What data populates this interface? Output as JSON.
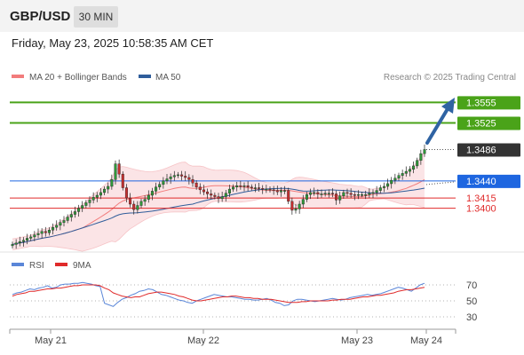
{
  "header": {
    "symbol": "GBP/USD",
    "timeframe": "30 MIN",
    "datetime": "Friday, May 23, 2025 10:58:35 AM CET"
  },
  "legend": {
    "ma20": "MA 20 + Bollinger Bands",
    "ma50": "MA 50",
    "copyright": "Research © 2025 Trading Central"
  },
  "rsi_legend": {
    "rsi": "RSI",
    "ma": "9MA"
  },
  "colors": {
    "green": "#4aa319",
    "blue": "#1e66e0",
    "red": "#e02a2a",
    "dark": "#333333",
    "ma20": "#f27c7c",
    "ma50": "#2f5d9b",
    "band": "#fbe4e6",
    "rsi": "#5a86d8",
    "rsi_ma": "#e02a2a",
    "arrow": "#2f63a3"
  },
  "chart_data": [
    {
      "type": "candlestick",
      "title": "",
      "ylim": [
        1.3341,
        1.3575
      ],
      "x_labels": [
        "May 21",
        "May 22",
        "May 23",
        "May 24"
      ],
      "levels": [
        {
          "value": 1.3555,
          "label": "1.3555",
          "kind": "resistance",
          "color": "green"
        },
        {
          "value": 1.3525,
          "label": "1.3525",
          "kind": "resistance",
          "color": "green"
        },
        {
          "value": 1.3486,
          "label": "1.3486",
          "kind": "last price",
          "color": "dark"
        },
        {
          "value": 1.344,
          "label": "1.3440",
          "kind": "pivot",
          "color": "blue"
        },
        {
          "value": 1.3415,
          "label": "1.3415",
          "kind": "support",
          "color": "red"
        },
        {
          "value": 1.34,
          "label": "1.3400",
          "kind": "support",
          "color": "red"
        }
      ],
      "closes": [
        1.3347,
        1.3349,
        1.3351,
        1.3353,
        1.3356,
        1.3358,
        1.3361,
        1.3363,
        1.3366,
        1.3364,
        1.3368,
        1.3372,
        1.3375,
        1.3379,
        1.3382,
        1.3387,
        1.3391,
        1.3395,
        1.34,
        1.3404,
        1.3408,
        1.3412,
        1.3416,
        1.3419,
        1.3423,
        1.3428,
        1.3432,
        1.3442,
        1.3465,
        1.345,
        1.343,
        1.3415,
        1.3406,
        1.3398,
        1.3404,
        1.341,
        1.3413,
        1.3419,
        1.3425,
        1.3431,
        1.3435,
        1.344,
        1.3443,
        1.3446,
        1.3448,
        1.3449,
        1.3447,
        1.3445,
        1.3442,
        1.3437,
        1.3431,
        1.3427,
        1.3424,
        1.3421,
        1.3419,
        1.3417,
        1.3414,
        1.3417,
        1.3422,
        1.3428,
        1.3431,
        1.3433,
        1.3432,
        1.3433,
        1.3431,
        1.343,
        1.343,
        1.3429,
        1.3428,
        1.3428,
        1.3427,
        1.3426,
        1.3424,
        1.3426,
        1.3426,
        1.341,
        1.3397,
        1.3399,
        1.3406,
        1.3413,
        1.342,
        1.3423,
        1.3423,
        1.3421,
        1.3421,
        1.3422,
        1.3422,
        1.3421,
        1.3412,
        1.3418,
        1.3423,
        1.3422,
        1.342,
        1.3419,
        1.342,
        1.342,
        1.342,
        1.3422,
        1.3423,
        1.3426,
        1.343,
        1.3432,
        1.3436,
        1.3441,
        1.3444,
        1.3448,
        1.3451,
        1.3454,
        1.3457,
        1.3462,
        1.347,
        1.348,
        1.3486
      ],
      "ma20_label": "MA 20 + Bollinger Bands",
      "ma50_label": "MA 50"
    },
    {
      "type": "line",
      "title": "",
      "ylim": [
        20,
        80
      ],
      "yticks": [
        70,
        50,
        30
      ],
      "series": [
        {
          "name": "RSI",
          "color": "rsi",
          "values": [
            58,
            60,
            61,
            63,
            65,
            64,
            66,
            67,
            69,
            66,
            67,
            70,
            71,
            71,
            72,
            72,
            73,
            72,
            71,
            69,
            68,
            47,
            45,
            43,
            48,
            52,
            54,
            57,
            59,
            62,
            63,
            65,
            64,
            61,
            58,
            57,
            55,
            53,
            51,
            50,
            48,
            47,
            50,
            52,
            54,
            56,
            58,
            57,
            56,
            55,
            55,
            54,
            53,
            52,
            52,
            51,
            51,
            52,
            53,
            51,
            48,
            47,
            44,
            45,
            50,
            52,
            52,
            51,
            50,
            49,
            50,
            51,
            52,
            53,
            52,
            51,
            52,
            54,
            55,
            56,
            57,
            58,
            57,
            58,
            59,
            61,
            63,
            65,
            67,
            66,
            64,
            62,
            66,
            70,
            72
          ]
        },
        {
          "name": "9MA",
          "color": "rsi_ma",
          "values": [
            56,
            58,
            59,
            60,
            62,
            62,
            63,
            64,
            65,
            65,
            66,
            66,
            67,
            68,
            69,
            69,
            70,
            70,
            70,
            70,
            69,
            66,
            64,
            60,
            58,
            56,
            55,
            54,
            55,
            55,
            57,
            59,
            60,
            61,
            61,
            60,
            59,
            58,
            56,
            55,
            53,
            51,
            50,
            50,
            51,
            52,
            53,
            54,
            55,
            55,
            56,
            56,
            55,
            54,
            54,
            53,
            53,
            52,
            52,
            52,
            51,
            50,
            49,
            48,
            48,
            48,
            49,
            49,
            50,
            50,
            50,
            50,
            50,
            51,
            51,
            52,
            52,
            52,
            53,
            54,
            55,
            55,
            56,
            57,
            57,
            58,
            59,
            60,
            62,
            63,
            64,
            64,
            65,
            66,
            67
          ]
        }
      ]
    }
  ]
}
